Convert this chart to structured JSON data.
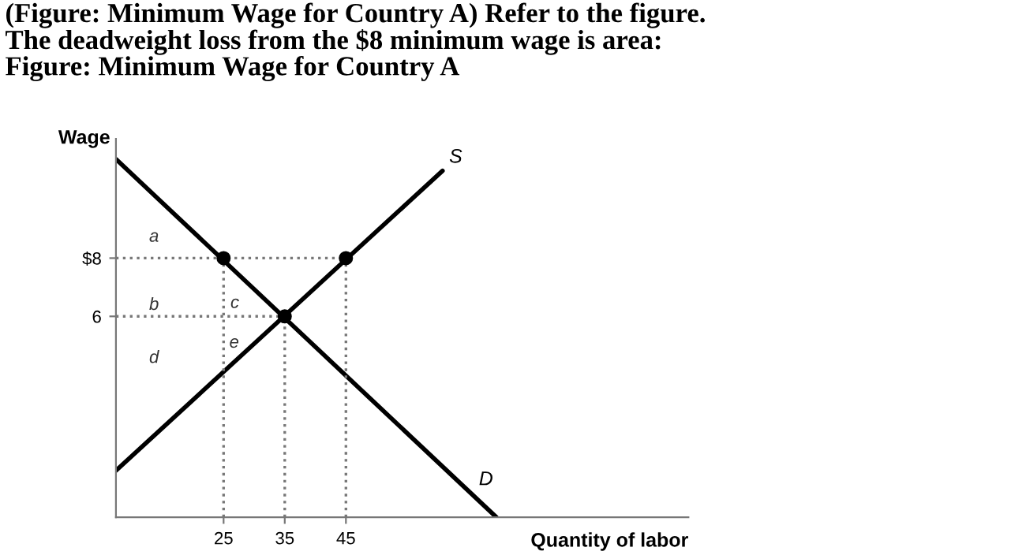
{
  "chart_data": {
    "type": "line",
    "title": "(Figure: Minimum Wage for Country A) Refer to the figure.\nThe deadweight loss from the $8 minimum wage is area:\nFigure: Minimum Wage for Country A",
    "xlabel": "Quantity of labor",
    "ylabel": "Wage",
    "xlim": [
      7.4,
      101
    ],
    "ylim": [
      -0.9,
      12.1
    ],
    "xticks": [
      25,
      35,
      45
    ],
    "yticks": [
      6,
      {
        "value": 8,
        "label": "$8"
      }
    ],
    "grid": false,
    "legend": false,
    "series": [
      {
        "name": "S",
        "color": "#000000",
        "x": [
          7.4,
          60.8
        ],
        "values": [
          0.7,
          11.0
        ]
      },
      {
        "name": "D",
        "color": "#000000",
        "x": [
          7.4,
          69.6
        ],
        "values": [
          11.4,
          -0.9
        ]
      },
      {
        "type": "line",
        "line_style": "dotted",
        "color": "#777777",
        "x": [
          7.4,
          45
        ],
        "values": [
          8,
          8
        ]
      },
      {
        "type": "line",
        "line_style": "dotted",
        "color": "#777777",
        "x": [
          7.4,
          35
        ],
        "values": [
          6,
          6
        ]
      },
      {
        "type": "line",
        "line_style": "dotted",
        "color": "#777777",
        "x": [
          25,
          25
        ],
        "values": [
          -0.9,
          8
        ]
      },
      {
        "type": "line",
        "line_style": "dotted",
        "color": "#777777",
        "x": [
          35,
          35
        ],
        "values": [
          -0.9,
          6
        ]
      },
      {
        "type": "line",
        "line_style": "dotted",
        "color": "#777777",
        "x": [
          45,
          45
        ],
        "values": [
          -0.9,
          8
        ]
      },
      {
        "type": "scatter",
        "marker": "circle",
        "color": "#000000",
        "x": [
          25,
          45,
          35
        ],
        "values": [
          8,
          8,
          6
        ]
      }
    ],
    "annotations": [
      "a",
      "b",
      "c",
      "e",
      "d"
    ]
  }
}
